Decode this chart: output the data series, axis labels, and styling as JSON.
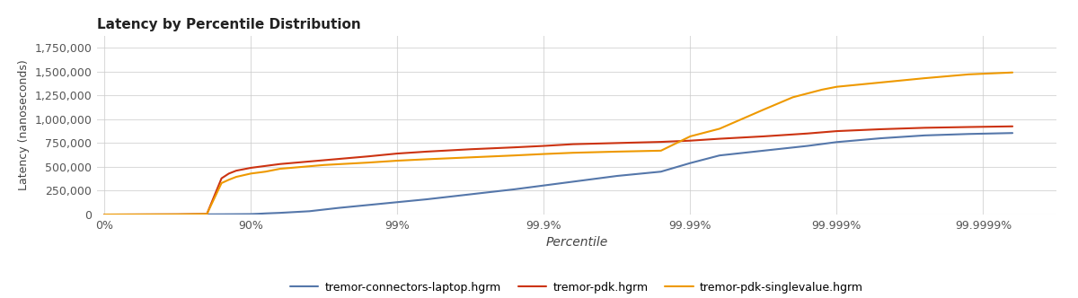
{
  "title": "Latency by Percentile Distribution",
  "xlabel": "Percentile",
  "ylabel": "Latency (nanoseconds)",
  "background_color": "#ffffff",
  "plot_background_color": "#ffffff",
  "grid_color": "#cccccc",
  "x_ticks_labels": [
    "0%",
    "90%",
    "99%",
    "99.9%",
    "99.99%",
    "99.999%",
    "99.9999%"
  ],
  "x_ticks_positions": [
    0,
    1,
    2,
    3,
    4,
    5,
    6
  ],
  "ylim": [
    0,
    1875000
  ],
  "y_ticks": [
    0,
    250000,
    500000,
    750000,
    1000000,
    1250000,
    1500000,
    1750000
  ],
  "series": [
    {
      "label": "tremor-connectors-laptop.hgrm",
      "color": "#5577aa",
      "linewidth": 1.5,
      "x": [
        0.0,
        0.5,
        0.8,
        1.0,
        1.05,
        1.1,
        1.2,
        1.4,
        1.6,
        1.8,
        2.0,
        2.2,
        2.4,
        2.6,
        2.8,
        3.0,
        3.2,
        3.5,
        3.8,
        4.0,
        4.2,
        4.5,
        4.8,
        5.0,
        5.3,
        5.6,
        5.9,
        6.2
      ],
      "y": [
        0,
        1000,
        3000,
        5000,
        8000,
        12000,
        18000,
        35000,
        70000,
        100000,
        130000,
        160000,
        195000,
        230000,
        265000,
        305000,
        345000,
        405000,
        450000,
        540000,
        620000,
        670000,
        720000,
        760000,
        800000,
        830000,
        845000,
        855000
      ]
    },
    {
      "label": "tremor-pdk.hgrm",
      "color": "#cc3311",
      "linewidth": 1.5,
      "x": [
        0.0,
        0.5,
        0.7,
        0.8,
        0.85,
        0.9,
        1.0,
        1.1,
        1.2,
        1.5,
        1.8,
        2.0,
        2.2,
        2.5,
        2.8,
        3.0,
        3.2,
        3.5,
        3.8,
        4.0,
        4.2,
        4.5,
        4.8,
        5.0,
        5.3,
        5.6,
        5.9,
        6.2
      ],
      "y": [
        0,
        2000,
        5000,
        380000,
        430000,
        460000,
        490000,
        510000,
        530000,
        570000,
        610000,
        640000,
        660000,
        685000,
        705000,
        720000,
        738000,
        750000,
        762000,
        775000,
        795000,
        820000,
        850000,
        875000,
        895000,
        910000,
        918000,
        925000
      ]
    },
    {
      "label": "tremor-pdk-singlevalue.hgrm",
      "color": "#ee9900",
      "linewidth": 1.5,
      "x": [
        0.0,
        0.5,
        0.7,
        0.8,
        0.85,
        0.9,
        1.0,
        1.1,
        1.2,
        1.5,
        1.8,
        2.0,
        2.2,
        2.5,
        2.8,
        3.0,
        3.2,
        3.5,
        3.8,
        4.0,
        4.2,
        4.5,
        4.7,
        4.9,
        5.0,
        5.2,
        5.4,
        5.6,
        5.9,
        6.2
      ],
      "y": [
        0,
        2000,
        5000,
        330000,
        365000,
        395000,
        430000,
        450000,
        480000,
        520000,
        545000,
        565000,
        580000,
        600000,
        620000,
        635000,
        648000,
        660000,
        670000,
        820000,
        900000,
        1100000,
        1230000,
        1310000,
        1340000,
        1370000,
        1400000,
        1430000,
        1470000,
        1490000
      ]
    }
  ]
}
